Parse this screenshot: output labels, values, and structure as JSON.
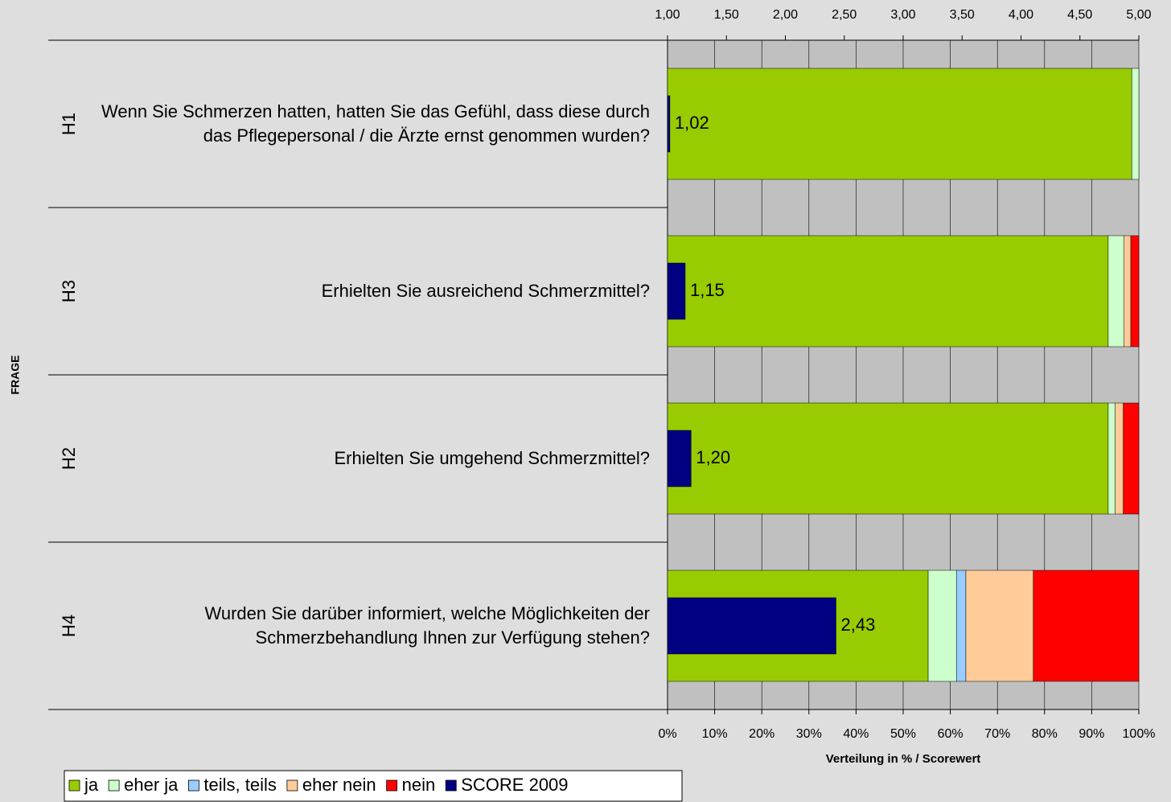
{
  "chart_data": {
    "type": "stacked_bar_horizontal",
    "y_label": "FRAGE",
    "x_label": "Verteilung in % / Scorewert",
    "categories": [
      "H1",
      "H3",
      "H2",
      "H4"
    ],
    "questions": [
      "Wenn Sie Schmerzen hatten, hatten Sie das Gefühl, dass diese durch das Pflegepersonal / die Ärzte ernst genommen wurden?",
      "Erhielten Sie ausreichend Schmerzmittel?",
      "Erhielten Sie umgehend Schmerzmittel?",
      "Wurden Sie darüber informiert, welche Möglichkeiten der Schmerzbehandlung Ihnen zur Verfügung stehen?"
    ],
    "series": [
      {
        "name": "ja",
        "color": "#99cc00",
        "values": [
          98.5,
          93.5,
          93.5,
          55.3
        ]
      },
      {
        "name": "eher ja",
        "color": "#ccffcc",
        "values": [
          1.5,
          3.3,
          1.5,
          6
        ]
      },
      {
        "name": "teils, teils",
        "color": "#99ccff",
        "values": [
          0,
          0,
          0,
          2
        ]
      },
      {
        "name": "eher nein",
        "color": "#ffcc99",
        "values": [
          0,
          1.5,
          1.7,
          14.3
        ]
      },
      {
        "name": "nein",
        "color": "#ff0000",
        "values": [
          0,
          1.7,
          3.3,
          22.4
        ]
      },
      {
        "name": "SCORE 2009",
        "color": "#000080",
        "axis": "x2",
        "values": [
          1.02,
          1.15,
          1.2,
          2.43
        ],
        "value_labels": [
          "1,02",
          "1,15",
          "1,20",
          "2,43"
        ]
      }
    ],
    "xlim": [
      0,
      100
    ],
    "xticks": [
      {
        "value": 0,
        "label": "0%"
      },
      {
        "value": 10,
        "label": "10%"
      },
      {
        "value": 20,
        "label": "20%"
      },
      {
        "value": 30,
        "label": "30%"
      },
      {
        "value": 40,
        "label": "40%"
      },
      {
        "value": 50,
        "label": "50%"
      },
      {
        "value": 60,
        "label": "60%"
      },
      {
        "value": 70,
        "label": "70%"
      },
      {
        "value": 80,
        "label": "80%"
      },
      {
        "value": 90,
        "label": "90%"
      },
      {
        "value": 100,
        "label": "100%"
      }
    ],
    "x2lim": [
      1,
      5
    ],
    "x2ticks": [
      {
        "value": 1,
        "label": "1,00"
      },
      {
        "value": 1.5,
        "label": "1,50"
      },
      {
        "value": 2,
        "label": "2,00"
      },
      {
        "value": 2.5,
        "label": "2,50"
      },
      {
        "value": 3,
        "label": "3,00"
      },
      {
        "value": 3.5,
        "label": "3,50"
      },
      {
        "value": 4,
        "label": "4,00"
      },
      {
        "value": 4.5,
        "label": "4,50"
      },
      {
        "value": 5,
        "label": "5,00"
      }
    ],
    "grid": true
  }
}
